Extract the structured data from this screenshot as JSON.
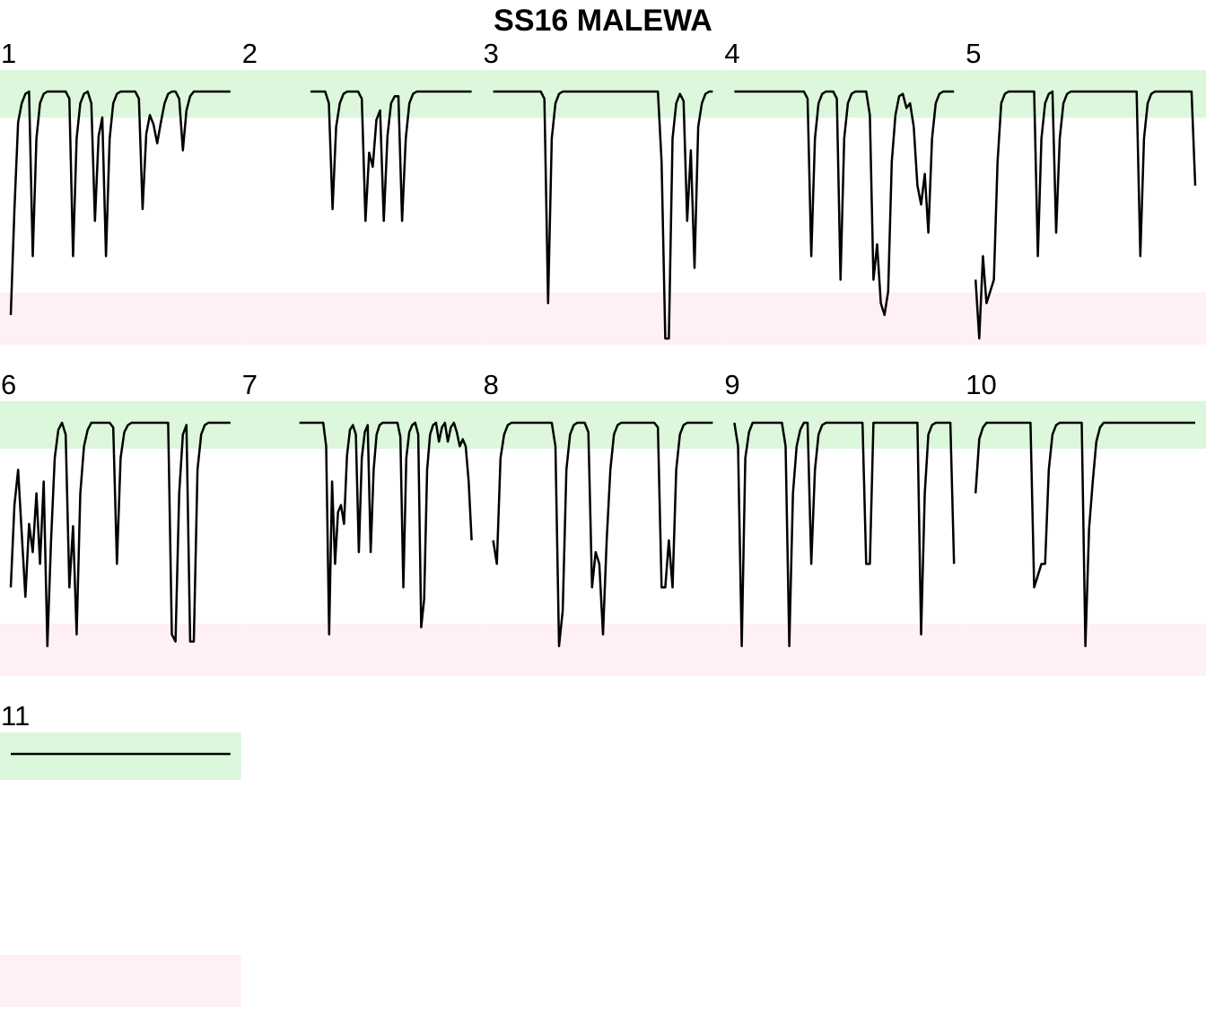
{
  "title": "SS16 MALEWA",
  "colors": {
    "good_band": "#dcf7dc",
    "bad_band": "#fff0f3",
    "line": "#000000"
  },
  "chart_data": {
    "type": "line",
    "title": "SS16 MALEWA",
    "layout": "small-multiples",
    "columns": 5,
    "panels": [
      {
        "label": "1",
        "values": [
          0.05,
          0.5,
          0.87,
          0.95,
          0.99,
          1,
          0.3,
          0.8,
          0.95,
          0.99,
          1,
          1,
          1,
          1,
          1,
          1,
          0.97,
          0.3,
          0.8,
          0.95,
          0.99,
          1,
          0.95,
          0.45,
          0.81,
          0.89,
          0.3,
          0.8,
          0.95,
          0.99,
          1,
          1,
          1,
          1,
          1,
          0.97,
          0.5,
          0.82,
          0.9,
          0.86,
          0.78,
          0.87,
          0.95,
          0.99,
          1,
          1,
          0.97,
          0.75,
          0.92,
          0.98,
          1,
          1,
          1,
          1,
          1,
          1,
          1,
          1,
          1,
          1,
          1
        ]
      },
      {
        "label": "2",
        "values": [
          null,
          null,
          null,
          null,
          null,
          null,
          null,
          null,
          null,
          null,
          null,
          null,
          null,
          null,
          null,
          null,
          1,
          1,
          1,
          1,
          1,
          0.95,
          0.5,
          0.85,
          0.95,
          0.99,
          1,
          1,
          1,
          1,
          0.97,
          0.45,
          0.74,
          0.68,
          0.88,
          0.92,
          0.45,
          0.81,
          0.95,
          0.98,
          0.98,
          0.45,
          0.8,
          0.95,
          0.99,
          1,
          1,
          1,
          1,
          1,
          1,
          1,
          1,
          1,
          1,
          1,
          1,
          1,
          1,
          1,
          1
        ]
      },
      {
        "label": "3",
        "values": [
          1,
          1,
          1,
          1,
          1,
          1,
          1,
          1,
          1,
          1,
          1,
          1,
          1,
          1,
          0.97,
          0.1,
          0.8,
          0.95,
          0.99,
          1,
          1,
          1,
          1,
          1,
          1,
          1,
          1,
          1,
          1,
          1,
          1,
          1,
          1,
          1,
          1,
          1,
          1,
          1,
          1,
          1,
          1,
          1,
          1,
          1,
          1,
          1,
          0.7,
          -0.05,
          -0.05,
          0.8,
          0.95,
          0.99,
          0.96,
          0.45,
          0.75,
          0.25,
          0.85,
          0.95,
          0.99,
          1,
          1
        ]
      },
      {
        "label": "4",
        "values": [
          1,
          1,
          1,
          1,
          1,
          1,
          1,
          1,
          1,
          1,
          1,
          1,
          1,
          1,
          1,
          1,
          1,
          1,
          1,
          1,
          0.97,
          0.3,
          0.8,
          0.95,
          0.99,
          1,
          1,
          1,
          0.97,
          0.2,
          0.8,
          0.95,
          0.99,
          1,
          1,
          1,
          1,
          0.9,
          0.2,
          0.35,
          0.1,
          0.05,
          0.15,
          0.7,
          0.9,
          0.98,
          0.99,
          0.93,
          0.95,
          0.85,
          0.6,
          0.52,
          0.65,
          0.4,
          0.8,
          0.95,
          0.99,
          1,
          1,
          1,
          1
        ]
      },
      {
        "label": "5",
        "values": [
          0.2,
          -0.05,
          0.3,
          0.1,
          0.15,
          0.2,
          0.7,
          0.95,
          0.99,
          1,
          1,
          1,
          1,
          1,
          1,
          1,
          1,
          0.3,
          0.8,
          0.95,
          0.99,
          1,
          0.4,
          0.8,
          0.95,
          0.99,
          1,
          1,
          1,
          1,
          1,
          1,
          1,
          1,
          1,
          1,
          1,
          1,
          1,
          1,
          1,
          1,
          1,
          1,
          1,
          0.3,
          0.8,
          0.95,
          0.99,
          1,
          1,
          1,
          1,
          1,
          1,
          1,
          1,
          1,
          1,
          1,
          0.6
        ]
      },
      {
        "label": "6",
        "values": [
          0.3,
          0.65,
          0.8,
          0.53,
          0.26,
          0.57,
          0.45,
          0.7,
          0.4,
          0.75,
          0.05,
          0.5,
          0.85,
          0.97,
          1,
          0.95,
          0.3,
          0.56,
          0.1,
          0.7,
          0.9,
          0.97,
          1,
          1,
          1,
          1,
          1,
          1,
          0.98,
          0.4,
          0.85,
          0.96,
          0.99,
          1,
          1,
          1,
          1,
          1,
          1,
          1,
          1,
          1,
          1,
          1,
          0.1,
          0.07,
          0.7,
          0.95,
          0.99,
          0.07,
          0.07,
          0.8,
          0.95,
          0.99,
          1,
          1,
          1,
          1,
          1,
          1,
          1
        ]
      },
      {
        "label": "7",
        "values": [
          null,
          null,
          null,
          null,
          null,
          null,
          null,
          null,
          null,
          null,
          null,
          null,
          null,
          null,
          null,
          null,
          1,
          1,
          1,
          1,
          1,
          1,
          1,
          1,
          1,
          0.9,
          0.1,
          0.75,
          0.4,
          0.62,
          0.65,
          0.57,
          0.86,
          0.97,
          0.99,
          0.95,
          0.45,
          0.85,
          0.96,
          0.99,
          0.45,
          0.8,
          0.95,
          0.99,
          1,
          1,
          1,
          1,
          1,
          1,
          0.94,
          0.3,
          0.85,
          0.96,
          0.99,
          1,
          0.95,
          0.13,
          0.25,
          0.8,
          0.95,
          0.99,
          1,
          0.92,
          0.98,
          1,
          0.92,
          0.98,
          1,
          0.96,
          0.9,
          0.93,
          0.9,
          0.75,
          0.5
        ]
      },
      {
        "label": "8",
        "values": [
          0.5,
          0.4,
          0.85,
          0.95,
          0.99,
          1,
          1,
          1,
          1,
          1,
          1,
          1,
          1,
          1,
          1,
          1,
          1,
          0.9,
          0.05,
          0.2,
          0.8,
          0.95,
          0.99,
          1,
          1,
          1,
          0.96,
          0.3,
          0.45,
          0.4,
          0.1,
          0.5,
          0.8,
          0.95,
          0.99,
          1,
          1,
          1,
          1,
          1,
          1,
          1,
          1,
          1,
          1,
          0.98,
          0.3,
          0.3,
          0.5,
          0.3,
          0.8,
          0.95,
          0.99,
          1,
          1,
          1,
          1,
          1,
          1,
          1,
          1
        ]
      },
      {
        "label": "9",
        "values": [
          1,
          0.9,
          0.05,
          0.85,
          0.96,
          1,
          1,
          1,
          1,
          1,
          1,
          1,
          1,
          1,
          0.9,
          0.05,
          0.7,
          0.9,
          0.97,
          1,
          1,
          0.4,
          0.8,
          0.95,
          0.99,
          1,
          1,
          1,
          1,
          1,
          1,
          1,
          1,
          1,
          1,
          1,
          0.4,
          0.4,
          1,
          1,
          1,
          1,
          1,
          1,
          1,
          1,
          1,
          1,
          1,
          1,
          1,
          0.1,
          0.7,
          0.95,
          0.99,
          1,
          1,
          1,
          1,
          1,
          0.4
        ]
      },
      {
        "label": "10",
        "values": [
          0.7,
          0.93,
          0.98,
          1,
          1,
          1,
          1,
          1,
          1,
          1,
          1,
          1,
          1,
          1,
          1,
          1,
          0.3,
          0.35,
          0.4,
          0.4,
          0.8,
          0.95,
          0.99,
          1,
          1,
          1,
          1,
          1,
          1,
          1,
          0.05,
          0.55,
          0.75,
          0.92,
          0.98,
          1,
          1,
          1,
          1,
          1,
          1,
          1,
          1,
          1,
          1,
          1,
          1,
          1,
          1,
          1,
          1,
          1,
          1,
          1,
          1,
          1,
          1,
          1,
          1,
          1,
          1
        ]
      },
      {
        "label": "11",
        "values": [
          1,
          1,
          1,
          1,
          1,
          1,
          1,
          1,
          1,
          1,
          1,
          1,
          1,
          1,
          1,
          1,
          1,
          1,
          1,
          1,
          1,
          1,
          1,
          1,
          1,
          1,
          1,
          1,
          1,
          1,
          1,
          1,
          1,
          1,
          1,
          1,
          1,
          1,
          1,
          1,
          1,
          1,
          1,
          1,
          1,
          1,
          1,
          1,
          1,
          1,
          1,
          1,
          1,
          1,
          1,
          1,
          1,
          1,
          1,
          1,
          1
        ]
      }
    ]
  }
}
